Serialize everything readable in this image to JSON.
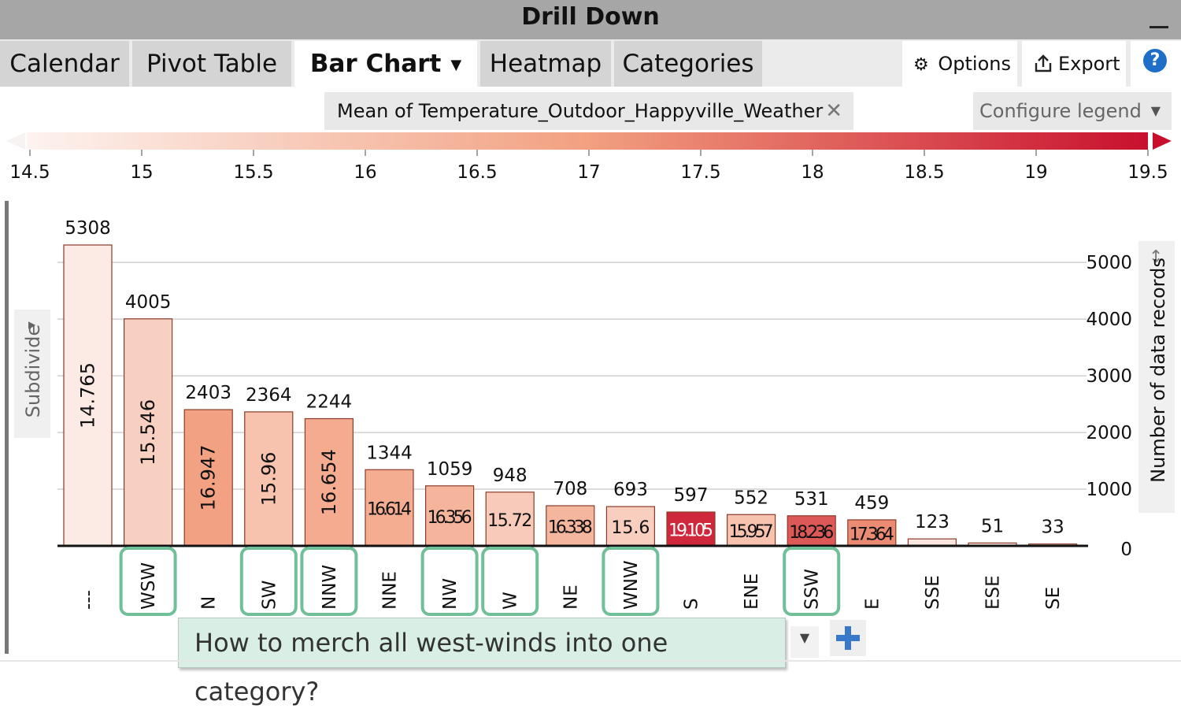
{
  "window": {
    "title": "Drill Down"
  },
  "tabs": [
    {
      "label": "Calendar",
      "active": false
    },
    {
      "label": "Pivot Table",
      "active": false
    },
    {
      "label": "Bar Chart",
      "active": true
    },
    {
      "label": "Heatmap",
      "active": false
    },
    {
      "label": "Categories",
      "active": false
    }
  ],
  "toolbar": {
    "options_label": "Options",
    "export_label": "Export",
    "help_label": "?"
  },
  "legend": {
    "measure_chip": "Mean of Temperature_Outdoor_Happyville_Weather",
    "chip_close": "✕",
    "configure_label": "Configure legend",
    "scale_ticks": [
      "14.5",
      "15",
      "15.5",
      "16",
      "16.5",
      "17",
      "17.5",
      "18",
      "18.5",
      "19",
      "19.5"
    ],
    "min": 14.5,
    "max": 19.5,
    "color_low": "#fdf3f0",
    "color_high": "#c8102e"
  },
  "side_panels": {
    "subdivide_label": "Subdivide",
    "y_axis_title": "Number of data records"
  },
  "chart_data": {
    "type": "bar",
    "categories": [
      "---",
      "WSW",
      "N",
      "SW",
      "NNW",
      "NNE",
      "NW",
      "W",
      "NE",
      "WNW",
      "S",
      "ENE",
      "SSW",
      "E",
      "SSE",
      "ESE",
      "SE"
    ],
    "values": [
      5308,
      4005,
      2403,
      2364,
      2244,
      1344,
      1059,
      948,
      708,
      693,
      597,
      552,
      531,
      459,
      123,
      51,
      33
    ],
    "count_labels": [
      "5308",
      "4005",
      "2403",
      "2364",
      "2244",
      "1344",
      "1059",
      "948",
      "708",
      "693",
      "597",
      "552",
      "531",
      "459",
      "123",
      "51",
      "33"
    ],
    "color_values": [
      14.765,
      15.546,
      16.947,
      15.96,
      16.654,
      16.614,
      16.356,
      15.72,
      16.338,
      15.6,
      19.105,
      15.957,
      18.236,
      17.364,
      null,
      null,
      null
    ],
    "mean_labels": [
      "14.765",
      "15.546",
      "16.947",
      "15.96",
      "16.654",
      "16.614",
      "16.356",
      "15.72",
      "16.338",
      "15.6",
      "19.105",
      "15.957",
      "18.236",
      "17.364",
      "",
      "",
      ""
    ],
    "highlighted": [
      "WSW",
      "SW",
      "NNW",
      "NW",
      "W",
      "WNW",
      "SSW"
    ],
    "y_ticks": [
      "0",
      "1000",
      "2000",
      "3000",
      "4000",
      "5000"
    ],
    "ylim": [
      0,
      5308
    ],
    "ylabel": "Number of data records",
    "grid": true,
    "highlight_color": "#6fbf98"
  },
  "annotation": {
    "text": "How to merch all west-winds into one category?"
  }
}
